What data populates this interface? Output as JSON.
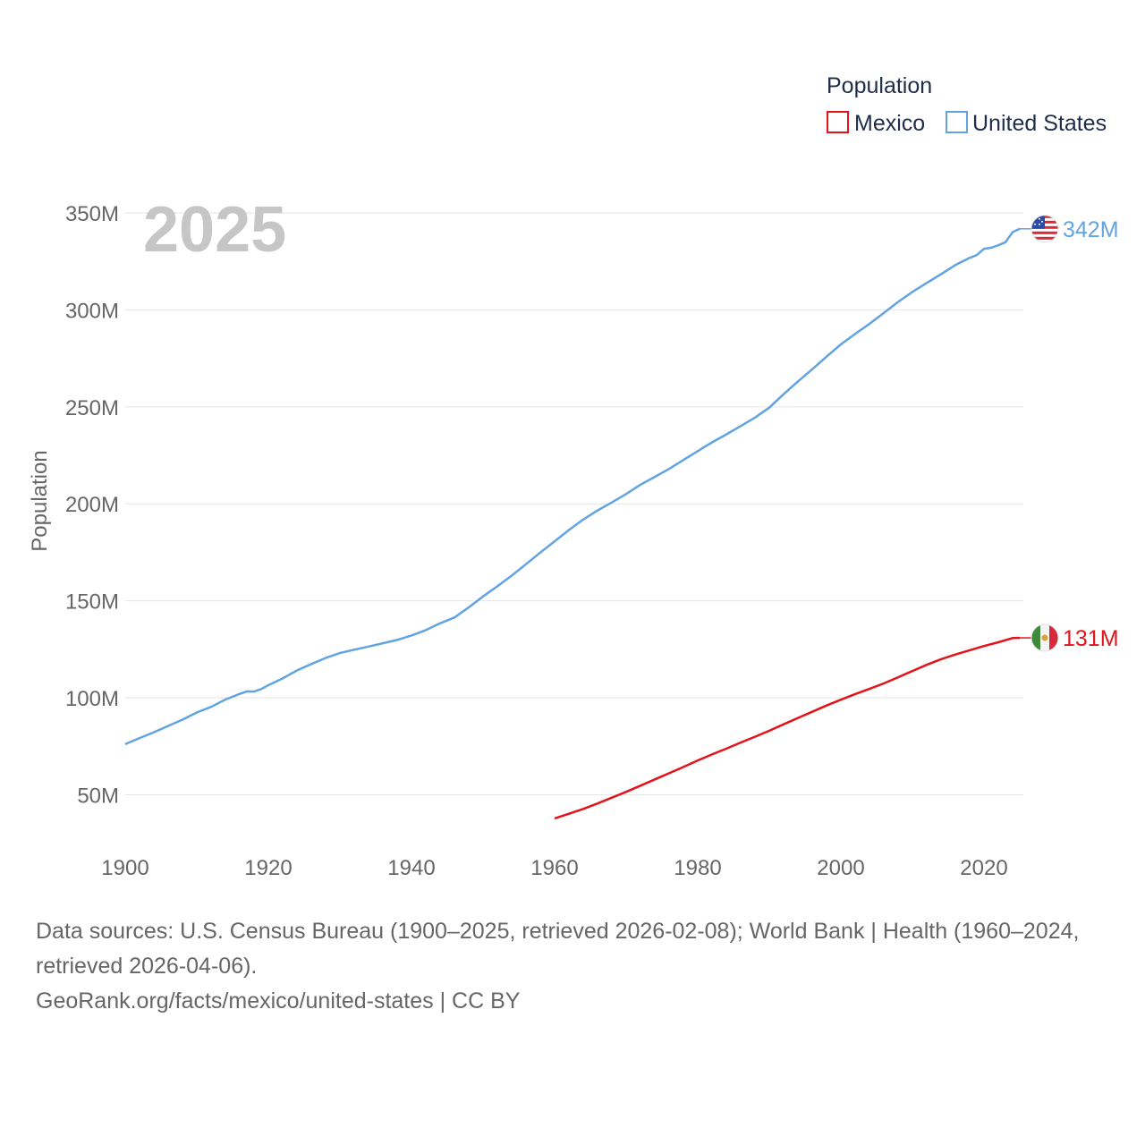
{
  "chart_data": {
    "type": "line",
    "year_overlay": "2025",
    "ylabel": "Population",
    "ylim": [
      17000000,
      362000000
    ],
    "xlim": [
      1900,
      2025
    ],
    "y_ticks": [
      {
        "value": 50000000,
        "label": "50M"
      },
      {
        "value": 100000000,
        "label": "100M"
      },
      {
        "value": 150000000,
        "label": "150M"
      },
      {
        "value": 200000000,
        "label": "200M"
      },
      {
        "value": 250000000,
        "label": "250M"
      },
      {
        "value": 300000000,
        "label": "300M"
      },
      {
        "value": 350000000,
        "label": "350M"
      }
    ],
    "x_ticks": [
      {
        "value": 1900,
        "label": "1900"
      },
      {
        "value": 1920,
        "label": "1920"
      },
      {
        "value": 1940,
        "label": "1940"
      },
      {
        "value": 1960,
        "label": "1960"
      },
      {
        "value": 1980,
        "label": "1980"
      },
      {
        "value": 2000,
        "label": "2000"
      },
      {
        "value": 2020,
        "label": "2020"
      }
    ],
    "legend": {
      "title": "Population",
      "position": "top-right"
    },
    "series": [
      {
        "name": "Mexico",
        "color": "#e3131a",
        "end_label": "131M",
        "flag": "mexico-flag",
        "points": [
          [
            1960,
            37800000
          ],
          [
            1962,
            40200000
          ],
          [
            1964,
            42700000
          ],
          [
            1966,
            45500000
          ],
          [
            1968,
            48500000
          ],
          [
            1970,
            51500000
          ],
          [
            1972,
            54700000
          ],
          [
            1974,
            57900000
          ],
          [
            1976,
            61100000
          ],
          [
            1978,
            64300000
          ],
          [
            1980,
            67700000
          ],
          [
            1982,
            70800000
          ],
          [
            1984,
            73800000
          ],
          [
            1986,
            76900000
          ],
          [
            1988,
            79900000
          ],
          [
            1990,
            83000000
          ],
          [
            1992,
            86300000
          ],
          [
            1994,
            89600000
          ],
          [
            1996,
            92800000
          ],
          [
            1998,
            96000000
          ],
          [
            2000,
            99000000
          ],
          [
            2002,
            101900000
          ],
          [
            2004,
            104600000
          ],
          [
            2006,
            107400000
          ],
          [
            2008,
            110600000
          ],
          [
            2010,
            113800000
          ],
          [
            2012,
            117000000
          ],
          [
            2014,
            119900000
          ],
          [
            2016,
            122300000
          ],
          [
            2018,
            124500000
          ],
          [
            2020,
            126700000
          ],
          [
            2022,
            128600000
          ],
          [
            2024,
            130800000
          ],
          [
            2025,
            130900000
          ]
        ]
      },
      {
        "name": "United States",
        "color": "#62a3e2",
        "end_label": "342M",
        "flag": "us-flag",
        "points": [
          [
            1900,
            76100000
          ],
          [
            1902,
            79200000
          ],
          [
            1904,
            82200000
          ],
          [
            1906,
            85500000
          ],
          [
            1908,
            88700000
          ],
          [
            1910,
            92400000
          ],
          [
            1912,
            95300000
          ],
          [
            1914,
            99100000
          ],
          [
            1916,
            102000000
          ],
          [
            1917,
            103300000
          ],
          [
            1918,
            103200000
          ],
          [
            1919,
            104500000
          ],
          [
            1920,
            106500000
          ],
          [
            1922,
            110000000
          ],
          [
            1924,
            114100000
          ],
          [
            1926,
            117400000
          ],
          [
            1928,
            120500000
          ],
          [
            1930,
            123100000
          ],
          [
            1932,
            124800000
          ],
          [
            1934,
            126400000
          ],
          [
            1936,
            128100000
          ],
          [
            1938,
            129800000
          ],
          [
            1940,
            132100000
          ],
          [
            1942,
            134900000
          ],
          [
            1944,
            138400000
          ],
          [
            1946,
            141400000
          ],
          [
            1948,
            146600000
          ],
          [
            1950,
            152300000
          ],
          [
            1952,
            157500000
          ],
          [
            1954,
            163000000
          ],
          [
            1956,
            168900000
          ],
          [
            1958,
            174900000
          ],
          [
            1960,
            180700000
          ],
          [
            1962,
            186500000
          ],
          [
            1964,
            191900000
          ],
          [
            1966,
            196600000
          ],
          [
            1968,
            200700000
          ],
          [
            1970,
            205100000
          ],
          [
            1972,
            209900000
          ],
          [
            1974,
            213900000
          ],
          [
            1976,
            218000000
          ],
          [
            1978,
            222600000
          ],
          [
            1980,
            227200000
          ],
          [
            1981,
            229500000
          ],
          [
            1982,
            231700000
          ],
          [
            1984,
            235800000
          ],
          [
            1986,
            240100000
          ],
          [
            1988,
            244500000
          ],
          [
            1990,
            249600000
          ],
          [
            1992,
            256500000
          ],
          [
            1994,
            263100000
          ],
          [
            1996,
            269400000
          ],
          [
            1998,
            275900000
          ],
          [
            2000,
            282200000
          ],
          [
            2002,
            287600000
          ],
          [
            2004,
            292800000
          ],
          [
            2006,
            298400000
          ],
          [
            2008,
            304100000
          ],
          [
            2010,
            309300000
          ],
          [
            2012,
            313900000
          ],
          [
            2014,
            318400000
          ],
          [
            2016,
            323100000
          ],
          [
            2018,
            326800000
          ],
          [
            2019,
            328300000
          ],
          [
            2020,
            331500000
          ],
          [
            2021,
            332000000
          ],
          [
            2022,
            333300000
          ],
          [
            2023,
            334900000
          ],
          [
            2024,
            340100000
          ],
          [
            2025,
            341800000
          ]
        ]
      }
    ]
  },
  "footer": {
    "sources": "Data sources: U.S. Census Bureau (1900–2025, retrieved 2026-02-08); World Bank | Health (1960–2024, retrieved 2026-04-06).",
    "attribution": "GeoRank.org/facts/mexico/united-states | CC BY"
  }
}
